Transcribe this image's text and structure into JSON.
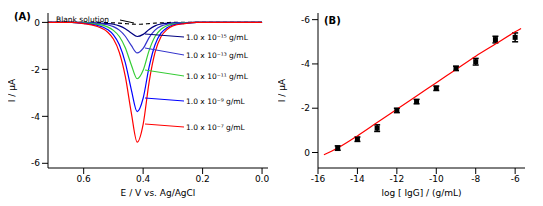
{
  "chart_data": [
    {
      "type": "line",
      "title": "(A)",
      "x_label": "E / V vs. Ag/AgCl",
      "y_label": "I / μA",
      "x": [
        0.72,
        0.68,
        0.64,
        0.6,
        0.56,
        0.52,
        0.5,
        0.48,
        0.46,
        0.44,
        0.42,
        0.4,
        0.38,
        0.36,
        0.34,
        0.32,
        0.3,
        0.26,
        0.22,
        0.18,
        0.14,
        0.1,
        0.06,
        0.02,
        0.0
      ],
      "xlim": [
        0.72,
        -0.02
      ],
      "xticks": [
        0.6,
        0.4,
        0.2,
        {
          "value": 0,
          "label": "0.0"
        }
      ],
      "ylim": [
        -6.2,
        0.4
      ],
      "yticks": [
        0,
        -2,
        -4,
        -6
      ],
      "series": [
        {
          "name": "Blank solution",
          "color": "#000000",
          "line_style": "dashed",
          "values": [
            0,
            0,
            0,
            0,
            0,
            -0.01,
            -0.02,
            -0.03,
            -0.05,
            -0.07,
            -0.08,
            -0.07,
            -0.05,
            -0.03,
            -0.02,
            -0.01,
            0,
            0,
            0,
            0,
            0,
            0,
            0,
            0,
            0
          ]
        },
        {
          "name": "1.0 x 10⁻¹⁵ g/mL",
          "color": "#000080",
          "line_style": "solid",
          "values": [
            0,
            0,
            0,
            -0.01,
            -0.02,
            -0.05,
            -0.08,
            -0.15,
            -0.27,
            -0.45,
            -0.6,
            -0.51,
            -0.3,
            -0.15,
            -0.07,
            -0.04,
            -0.02,
            -0.01,
            0,
            0,
            0,
            0,
            0,
            0,
            0
          ]
        },
        {
          "name": "1.0 x 10⁻¹³ g/mL",
          "color": "#3333cc",
          "line_style": "solid",
          "values": [
            0,
            0,
            0,
            -0.01,
            -0.04,
            -0.1,
            -0.18,
            -0.33,
            -0.59,
            -0.98,
            -1.3,
            -1.11,
            -0.65,
            -0.33,
            -0.16,
            -0.08,
            -0.04,
            -0.01,
            0,
            0,
            0,
            0,
            0,
            0,
            0
          ]
        },
        {
          "name": "1.0 x 10⁻¹¹ g/mL",
          "color": "#33cc33",
          "line_style": "solid",
          "values": [
            0,
            0,
            0,
            -0.02,
            -0.07,
            -0.19,
            -0.34,
            -0.6,
            -1.08,
            -1.8,
            -2.4,
            -2.04,
            -1.2,
            -0.6,
            -0.29,
            -0.14,
            -0.07,
            -0.02,
            0,
            0,
            0,
            0,
            0,
            0,
            0
          ]
        },
        {
          "name": "1.0 x 10⁻⁹ g/mL",
          "color": "#0000ff",
          "line_style": "solid",
          "values": [
            0,
            0,
            0,
            -0.04,
            -0.11,
            -0.3,
            -0.53,
            -0.95,
            -1.71,
            -2.85,
            -3.8,
            -3.23,
            -1.9,
            -0.95,
            -0.46,
            -0.23,
            -0.11,
            -0.04,
            0,
            0,
            0,
            0,
            0,
            0,
            0
          ]
        },
        {
          "name": "1.0 x 10⁻⁷ g/mL",
          "color": "#ff0000",
          "line_style": "solid",
          "values": [
            0,
            0,
            0,
            -0.05,
            -0.15,
            -0.41,
            -0.71,
            -1.28,
            -2.3,
            -3.83,
            -5.1,
            -4.34,
            -2.55,
            -1.28,
            -0.61,
            -0.31,
            -0.15,
            -0.05,
            0,
            0,
            0,
            0,
            0,
            0,
            0
          ]
        }
      ]
    },
    {
      "type": "scatter",
      "title": "(B)",
      "x_label": "log [ IgG] / (g/mL)",
      "y_label": "I / μA",
      "xlim": [
        -16,
        -5.5
      ],
      "xticks": [
        -16,
        -14,
        -12,
        -10,
        -8,
        -6
      ],
      "ylim": [
        0.7,
        -6.3
      ],
      "yticks": [
        -6,
        -4,
        -2,
        0
      ],
      "series": [
        {
          "type": "scatter",
          "color": "#000000",
          "marker": "square",
          "x": [
            -15,
            -14,
            -13,
            -12,
            -11,
            -10,
            -9,
            -8,
            -7,
            -6
          ],
          "values": [
            -0.2,
            -0.6,
            -1.1,
            -1.9,
            -2.3,
            -2.9,
            -3.8,
            -4.1,
            -5.1,
            -5.2
          ],
          "error": [
            0.1,
            0.1,
            0.15,
            0.1,
            0.1,
            0.1,
            0.1,
            0.15,
            0.15,
            0.2
          ]
        },
        {
          "type": "line",
          "color": "#ff0000",
          "line_style": "solid",
          "x": [
            -15.7,
            -15,
            -14,
            -13,
            -12,
            -11,
            -10,
            -9,
            -8,
            -7,
            -6,
            -5.7
          ],
          "values": [
            0.1,
            -0.2,
            -0.75,
            -1.35,
            -1.95,
            -2.55,
            -3.15,
            -3.75,
            -4.35,
            -4.9,
            -5.45,
            -5.6
          ]
        }
      ]
    }
  ]
}
